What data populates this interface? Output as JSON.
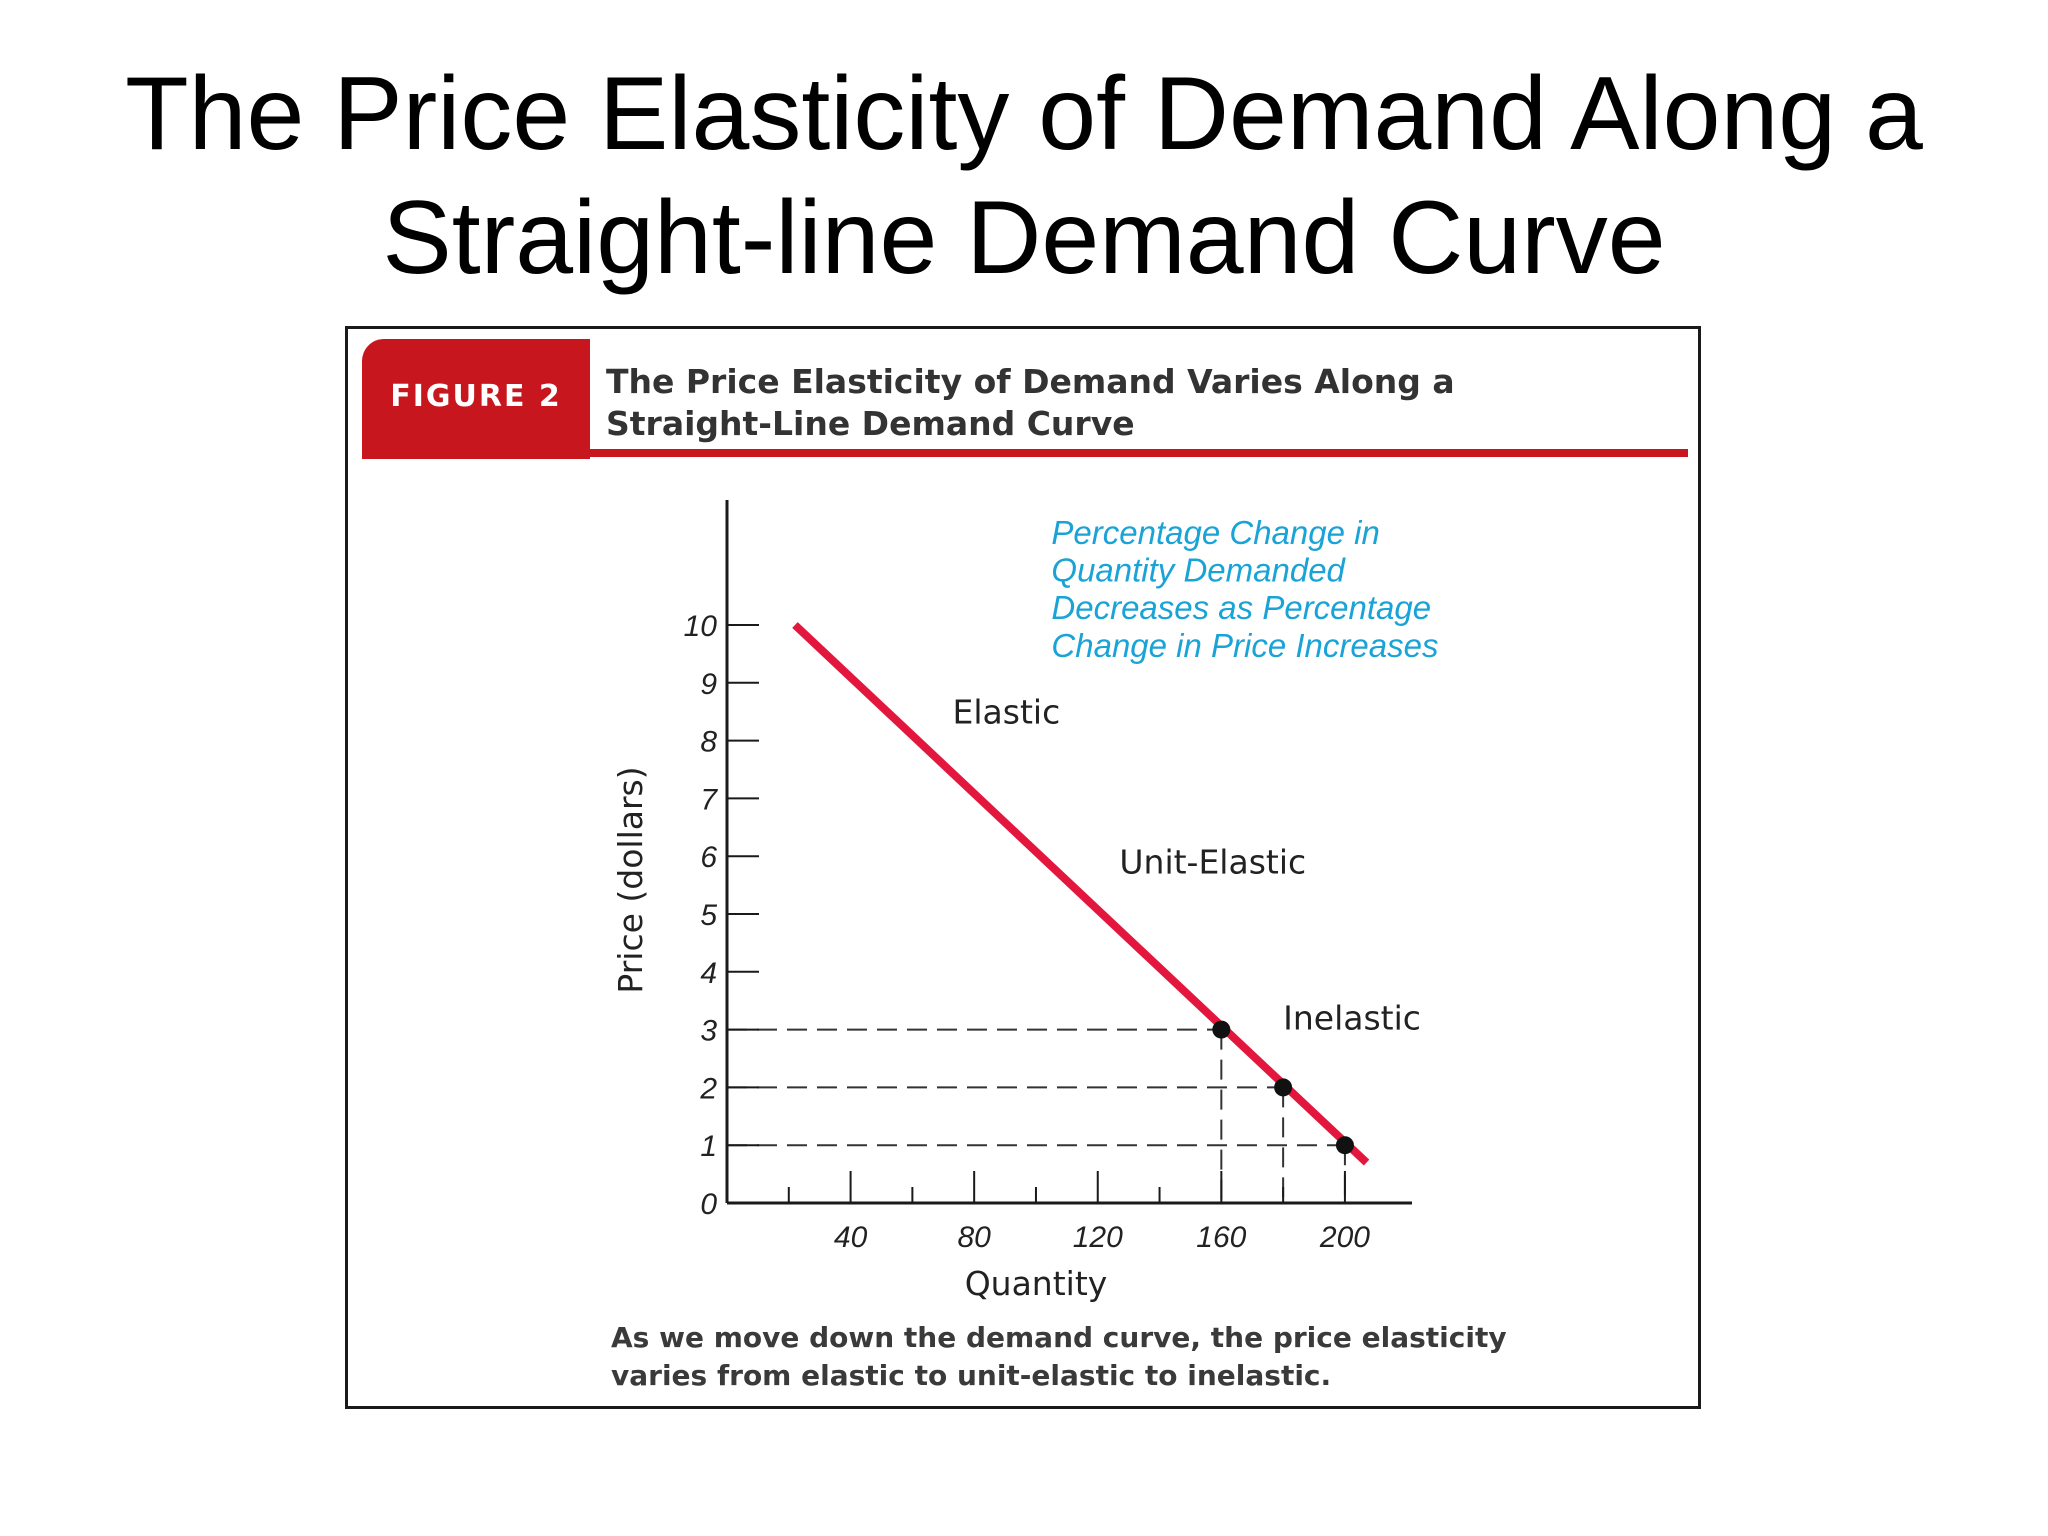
{
  "slide": {
    "title_lines": [
      "The Price Elasticity of Demand Along a",
      "Straight-line Demand Curve"
    ]
  },
  "figure": {
    "tab_label": "FIGURE 2",
    "heading_lines": [
      "The Price Elasticity of Demand Varies Along a",
      "Straight-Line Demand Curve"
    ],
    "caption_lines": [
      "As we move down the demand curve, the price elasticity",
      "varies from elastic to unit-elastic to inelastic."
    ],
    "colors": {
      "brand_red": "#c8161e",
      "curve": "#e3173e",
      "annotation": "#1aa3d6",
      "axis": "#1a1a1a"
    }
  },
  "chart_data": {
    "type": "line",
    "title": "",
    "xlabel": "Quantity",
    "ylabel": "Price (dollars)",
    "xlim": [
      0,
      212
    ],
    "ylim": [
      0,
      10
    ],
    "x_ticks_labeled": [
      40,
      80,
      120,
      160,
      200
    ],
    "x_ticks_minor": [
      20,
      60,
      100,
      140,
      180
    ],
    "y_ticks": [
      0,
      1,
      2,
      3,
      4,
      5,
      6,
      7,
      8,
      9,
      10
    ],
    "grid": false,
    "series": [
      {
        "type": "line",
        "x": [
          22,
          207
        ],
        "y": [
          10,
          0.7
        ]
      }
    ],
    "points": [
      {
        "x": 160,
        "y": 3
      },
      {
        "x": 180,
        "y": 2
      },
      {
        "x": 200,
        "y": 1
      }
    ],
    "annotations": [
      {
        "text": "Elastic",
        "x": 73,
        "y": 8.3
      },
      {
        "text": "Unit-Elastic",
        "x": 127,
        "y": 5.7
      },
      {
        "text": "Inelastic",
        "x": 180,
        "y": 3.0
      },
      {
        "text": "Percentage Change in",
        "x": 105,
        "y": 11.4
      },
      {
        "text": "Quantity Demanded",
        "x": 105,
        "y": 10.75
      },
      {
        "text": "Decreases as Percentage",
        "x": 105,
        "y": 10.1
      },
      {
        "text": "Change in Price Increases",
        "x": 105,
        "y": 9.45
      }
    ]
  }
}
